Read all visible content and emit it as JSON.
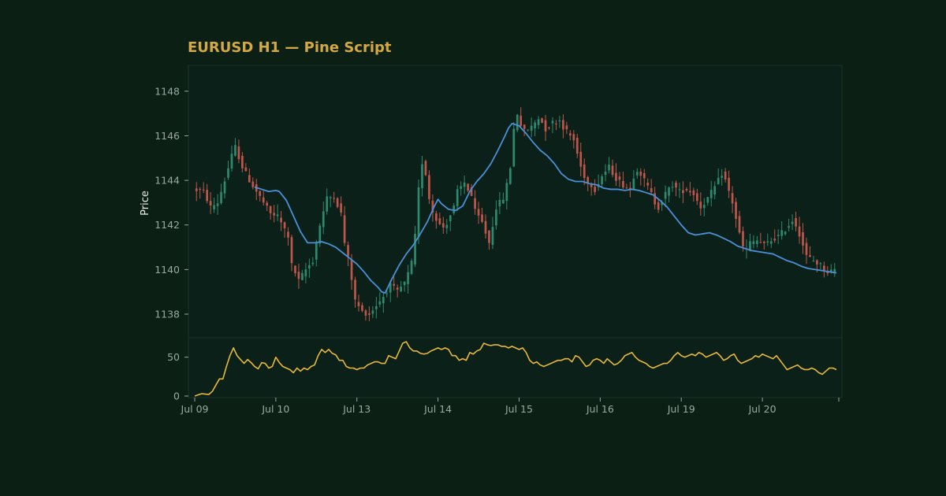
{
  "colors": {
    "background": "#0b1f15",
    "panel": "#0b2018",
    "panel_border": "#1b3529",
    "title": "#d4a843",
    "up_candle": "#2e8a6e",
    "down_candle": "#c0564b",
    "ma_line": "#4a90d9",
    "indicator_line": "#e8b83a",
    "tick_text": "#9aa8a2",
    "label_text": "#e6ece9"
  },
  "chart_data": {
    "type": "candlestick",
    "title": "EURUSD H1 — Pine Script",
    "ylabel": "Price",
    "xlabel": "",
    "grid": false,
    "legend": "none",
    "x_range": [
      0,
      182
    ],
    "ylim": [
      1137.4,
      1148.7
    ],
    "price_ticks": [
      1138,
      1140,
      1142,
      1144,
      1146,
      1148
    ],
    "x_ticks": [
      {
        "label": "Jul 09",
        "x": 0
      },
      {
        "label": "Jul 10",
        "x": 23
      },
      {
        "label": "Jul 13",
        "x": 46
      },
      {
        "label": "Jul 14",
        "x": 69
      },
      {
        "label": "Jul 15",
        "x": 92
      },
      {
        "label": "Jul 16",
        "x": 115
      },
      {
        "label": "Jul 19",
        "x": 138
      },
      {
        "label": "Jul 20",
        "x": 161
      }
    ],
    "price_path": [
      [
        0,
        1143.6
      ],
      [
        3,
        1143.5
      ],
      [
        5,
        1142.8
      ],
      [
        7,
        1143.0
      ],
      [
        9,
        1144.0
      ],
      [
        11,
        1145.1
      ],
      [
        12,
        1145.5
      ],
      [
        14,
        1144.6
      ],
      [
        16,
        1144.0
      ],
      [
        18,
        1143.5
      ],
      [
        20,
        1143.0
      ],
      [
        22,
        1142.5
      ],
      [
        24,
        1142.4
      ],
      [
        26,
        1141.8
      ],
      [
        27,
        1141.5
      ],
      [
        28,
        1140.2
      ],
      [
        30,
        1139.5
      ],
      [
        32,
        1140.0
      ],
      [
        34,
        1140.4
      ],
      [
        36,
        1142.0
      ],
      [
        38,
        1143.2
      ],
      [
        40,
        1143.3
      ],
      [
        42,
        1142.5
      ],
      [
        43,
        1141.2
      ],
      [
        44,
        1140.5
      ],
      [
        45,
        1139.6
      ],
      [
        46,
        1138.6
      ],
      [
        48,
        1138.1
      ],
      [
        50,
        1138.0
      ],
      [
        52,
        1138.4
      ],
      [
        54,
        1138.8
      ],
      [
        56,
        1139.3
      ],
      [
        58,
        1139.0
      ],
      [
        60,
        1139.4
      ],
      [
        61,
        1139.8
      ],
      [
        62,
        1140.3
      ],
      [
        63,
        1141.5
      ],
      [
        64,
        1143.6
      ],
      [
        65,
        1144.8
      ],
      [
        66,
        1144.3
      ],
      [
        67,
        1143.2
      ],
      [
        68,
        1142.6
      ],
      [
        69,
        1142.3
      ],
      [
        70,
        1142.0
      ],
      [
        71,
        1141.9
      ],
      [
        72,
        1142.1
      ],
      [
        74,
        1142.8
      ],
      [
        75,
        1143.5
      ],
      [
        77,
        1143.9
      ],
      [
        78,
        1143.6
      ],
      [
        79,
        1143.3
      ],
      [
        80,
        1142.6
      ],
      [
        82,
        1142.1
      ],
      [
        84,
        1141.2
      ],
      [
        85,
        1142.0
      ],
      [
        86,
        1142.8
      ],
      [
        88,
        1143.2
      ],
      [
        89,
        1143.8
      ],
      [
        90,
        1144.6
      ],
      [
        91,
        1146.3
      ],
      [
        92,
        1147.0
      ],
      [
        93,
        1146.5
      ],
      [
        94,
        1146.2
      ],
      [
        96,
        1146.4
      ],
      [
        98,
        1146.8
      ],
      [
        99,
        1146.6
      ],
      [
        100,
        1146.3
      ],
      [
        102,
        1146.6
      ],
      [
        104,
        1146.7
      ],
      [
        105,
        1146.4
      ],
      [
        106,
        1146.2
      ],
      [
        108,
        1145.8
      ],
      [
        109,
        1145.2
      ],
      [
        110,
        1144.6
      ],
      [
        111,
        1144.2
      ],
      [
        112,
        1143.9
      ],
      [
        113,
        1143.8
      ],
      [
        114,
        1143.6
      ],
      [
        116,
        1144.2
      ],
      [
        118,
        1144.6
      ],
      [
        120,
        1144.1
      ],
      [
        122,
        1143.8
      ],
      [
        124,
        1143.6
      ],
      [
        125,
        1144.2
      ],
      [
        126,
        1144.5
      ],
      [
        127,
        1144.3
      ],
      [
        128,
        1144.0
      ],
      [
        130,
        1143.4
      ],
      [
        131,
        1143.0
      ],
      [
        132,
        1142.8
      ],
      [
        134,
        1143.4
      ],
      [
        136,
        1143.8
      ],
      [
        138,
        1143.5
      ],
      [
        140,
        1143.6
      ],
      [
        142,
        1143.4
      ],
      [
        144,
        1142.8
      ],
      [
        146,
        1143.2
      ],
      [
        148,
        1143.7
      ],
      [
        149,
        1144.0
      ],
      [
        150,
        1144.3
      ],
      [
        151,
        1144.0
      ],
      [
        152,
        1143.5
      ],
      [
        153,
        1143.0
      ],
      [
        154,
        1142.3
      ],
      [
        155,
        1141.6
      ],
      [
        156,
        1141.0
      ],
      [
        157,
        1140.9
      ],
      [
        158,
        1141.2
      ],
      [
        160,
        1141.3
      ],
      [
        162,
        1141.1
      ],
      [
        164,
        1141.3
      ],
      [
        166,
        1141.5
      ],
      [
        168,
        1141.8
      ],
      [
        170,
        1142.2
      ],
      [
        171,
        1142.0
      ],
      [
        172,
        1141.6
      ],
      [
        173,
        1141.1
      ],
      [
        174,
        1140.6
      ],
      [
        176,
        1140.4
      ],
      [
        178,
        1140.2
      ],
      [
        180,
        1139.9
      ],
      [
        182,
        1140.0
      ]
    ],
    "ma_path": [
      [
        17,
        1143.7
      ],
      [
        19,
        1143.6
      ],
      [
        21,
        1143.5
      ],
      [
        23,
        1143.55
      ],
      [
        24,
        1143.5
      ],
      [
        26,
        1143.1
      ],
      [
        28,
        1142.4
      ],
      [
        30,
        1141.7
      ],
      [
        32,
        1141.2
      ],
      [
        34,
        1141.2
      ],
      [
        36,
        1141.25
      ],
      [
        38,
        1141.15
      ],
      [
        40,
        1141.0
      ],
      [
        42,
        1140.75
      ],
      [
        44,
        1140.5
      ],
      [
        46,
        1140.25
      ],
      [
        48,
        1139.9
      ],
      [
        50,
        1139.5
      ],
      [
        52,
        1139.2
      ],
      [
        53,
        1139.0
      ],
      [
        54,
        1138.95
      ],
      [
        56,
        1139.6
      ],
      [
        58,
        1140.2
      ],
      [
        60,
        1140.7
      ],
      [
        62,
        1141.1
      ],
      [
        64,
        1141.6
      ],
      [
        66,
        1142.15
      ],
      [
        67,
        1142.5
      ],
      [
        68,
        1142.85
      ],
      [
        69,
        1143.15
      ],
      [
        70,
        1142.95
      ],
      [
        72,
        1142.7
      ],
      [
        74,
        1142.65
      ],
      [
        76,
        1142.85
      ],
      [
        78,
        1143.5
      ],
      [
        80,
        1143.95
      ],
      [
        82,
        1144.3
      ],
      [
        84,
        1144.75
      ],
      [
        86,
        1145.35
      ],
      [
        88,
        1146.0
      ],
      [
        89,
        1146.35
      ],
      [
        90,
        1146.55
      ],
      [
        92,
        1146.45
      ],
      [
        94,
        1146.1
      ],
      [
        96,
        1145.7
      ],
      [
        98,
        1145.35
      ],
      [
        100,
        1145.1
      ],
      [
        102,
        1144.75
      ],
      [
        104,
        1144.3
      ],
      [
        106,
        1144.05
      ],
      [
        108,
        1143.95
      ],
      [
        110,
        1143.95
      ],
      [
        112,
        1143.85
      ],
      [
        114,
        1143.8
      ],
      [
        116,
        1143.65
      ],
      [
        118,
        1143.6
      ],
      [
        120,
        1143.6
      ],
      [
        122,
        1143.55
      ],
      [
        124,
        1143.6
      ],
      [
        126,
        1143.55
      ],
      [
        128,
        1143.45
      ],
      [
        130,
        1143.35
      ],
      [
        132,
        1143.1
      ],
      [
        134,
        1142.8
      ],
      [
        136,
        1142.4
      ],
      [
        138,
        1142.0
      ],
      [
        140,
        1141.65
      ],
      [
        142,
        1141.55
      ],
      [
        144,
        1141.6
      ],
      [
        146,
        1141.65
      ],
      [
        148,
        1141.55
      ],
      [
        150,
        1141.4
      ],
      [
        152,
        1141.25
      ],
      [
        154,
        1141.05
      ],
      [
        156,
        1140.95
      ],
      [
        158,
        1140.85
      ],
      [
        160,
        1140.8
      ],
      [
        162,
        1140.75
      ],
      [
        164,
        1140.7
      ],
      [
        166,
        1140.55
      ],
      [
        168,
        1140.4
      ],
      [
        170,
        1140.3
      ],
      [
        172,
        1140.15
      ],
      [
        174,
        1140.05
      ],
      [
        176,
        1140.0
      ],
      [
        178,
        1139.95
      ],
      [
        180,
        1139.9
      ],
      [
        182,
        1139.85
      ]
    ],
    "indicator": {
      "ylim": [
        0,
        72
      ],
      "ticks": [
        0,
        50
      ],
      "path": [
        [
          0,
          0
        ],
        [
          2,
          3
        ],
        [
          4,
          2
        ],
        [
          5,
          6
        ],
        [
          6,
          14
        ],
        [
          7,
          22
        ],
        [
          8,
          22
        ],
        [
          9,
          38
        ],
        [
          10,
          52
        ],
        [
          11,
          62
        ],
        [
          12,
          52
        ],
        [
          13,
          47
        ],
        [
          14,
          42
        ],
        [
          15,
          47
        ],
        [
          16,
          43
        ],
        [
          17,
          38
        ],
        [
          18,
          35
        ],
        [
          19,
          43
        ],
        [
          20,
          42
        ],
        [
          21,
          36
        ],
        [
          22,
          38
        ],
        [
          23,
          50
        ],
        [
          24,
          43
        ],
        [
          25,
          38
        ],
        [
          26,
          36
        ],
        [
          27,
          34
        ],
        [
          28,
          30
        ],
        [
          29,
          36
        ],
        [
          30,
          32
        ],
        [
          31,
          36
        ],
        [
          32,
          34
        ],
        [
          33,
          38
        ],
        [
          34,
          40
        ],
        [
          35,
          52
        ],
        [
          36,
          60
        ],
        [
          37,
          56
        ],
        [
          38,
          60
        ],
        [
          39,
          55
        ],
        [
          40,
          53
        ],
        [
          41,
          46
        ],
        [
          42,
          46
        ],
        [
          43,
          38
        ],
        [
          44,
          36
        ],
        [
          45,
          36
        ],
        [
          46,
          34
        ],
        [
          47,
          36
        ],
        [
          48,
          36
        ],
        [
          49,
          40
        ],
        [
          50,
          42
        ],
        [
          51,
          44
        ],
        [
          52,
          44
        ],
        [
          53,
          42
        ],
        [
          54,
          42
        ],
        [
          55,
          52
        ],
        [
          56,
          50
        ],
        [
          57,
          48
        ],
        [
          58,
          58
        ],
        [
          59,
          68
        ],
        [
          60,
          70
        ],
        [
          61,
          62
        ],
        [
          62,
          58
        ],
        [
          63,
          58
        ],
        [
          64,
          55
        ],
        [
          65,
          54
        ],
        [
          66,
          55
        ],
        [
          67,
          58
        ],
        [
          68,
          60
        ],
        [
          69,
          62
        ],
        [
          70,
          60
        ],
        [
          71,
          62
        ],
        [
          72,
          60
        ],
        [
          73,
          52
        ],
        [
          74,
          52
        ],
        [
          75,
          46
        ],
        [
          76,
          48
        ],
        [
          77,
          46
        ],
        [
          78,
          56
        ],
        [
          79,
          54
        ],
        [
          80,
          58
        ],
        [
          81,
          60
        ],
        [
          82,
          68
        ],
        [
          83,
          66
        ],
        [
          84,
          65
        ],
        [
          85,
          66
        ],
        [
          86,
          66
        ],
        [
          87,
          64
        ],
        [
          88,
          64
        ],
        [
          89,
          62
        ],
        [
          90,
          64
        ],
        [
          91,
          62
        ],
        [
          92,
          60
        ],
        [
          93,
          62
        ],
        [
          94,
          56
        ],
        [
          95,
          46
        ],
        [
          96,
          42
        ],
        [
          97,
          44
        ],
        [
          98,
          40
        ],
        [
          99,
          38
        ],
        [
          100,
          40
        ],
        [
          101,
          42
        ],
        [
          102,
          44
        ],
        [
          103,
          46
        ],
        [
          104,
          46
        ],
        [
          105,
          48
        ],
        [
          106,
          48
        ],
        [
          107,
          44
        ],
        [
          108,
          52
        ],
        [
          109,
          50
        ],
        [
          110,
          44
        ],
        [
          111,
          38
        ],
        [
          112,
          40
        ],
        [
          113,
          46
        ],
        [
          114,
          48
        ],
        [
          115,
          46
        ],
        [
          116,
          42
        ],
        [
          117,
          48
        ],
        [
          118,
          44
        ],
        [
          119,
          40
        ],
        [
          120,
          42
        ],
        [
          121,
          46
        ],
        [
          122,
          52
        ],
        [
          123,
          54
        ],
        [
          124,
          56
        ],
        [
          125,
          50
        ],
        [
          126,
          46
        ],
        [
          127,
          44
        ],
        [
          128,
          42
        ],
        [
          129,
          38
        ],
        [
          130,
          36
        ],
        [
          131,
          38
        ],
        [
          132,
          40
        ],
        [
          133,
          42
        ],
        [
          134,
          42
        ],
        [
          135,
          46
        ],
        [
          136,
          52
        ],
        [
          137,
          56
        ],
        [
          138,
          52
        ],
        [
          139,
          50
        ],
        [
          140,
          52
        ],
        [
          141,
          54
        ],
        [
          142,
          52
        ],
        [
          143,
          56
        ],
        [
          144,
          54
        ],
        [
          145,
          50
        ],
        [
          146,
          52
        ],
        [
          147,
          54
        ],
        [
          148,
          56
        ],
        [
          149,
          52
        ],
        [
          150,
          46
        ],
        [
          151,
          48
        ],
        [
          152,
          52
        ],
        [
          153,
          54
        ],
        [
          154,
          46
        ],
        [
          155,
          42
        ],
        [
          156,
          44
        ],
        [
          157,
          46
        ],
        [
          158,
          48
        ],
        [
          159,
          52
        ],
        [
          160,
          50
        ],
        [
          161,
          54
        ],
        [
          162,
          52
        ],
        [
          163,
          50
        ],
        [
          164,
          48
        ],
        [
          165,
          52
        ],
        [
          166,
          46
        ],
        [
          167,
          40
        ],
        [
          168,
          34
        ],
        [
          169,
          36
        ],
        [
          170,
          38
        ],
        [
          171,
          40
        ],
        [
          172,
          36
        ],
        [
          173,
          34
        ],
        [
          174,
          34
        ],
        [
          175,
          36
        ],
        [
          176,
          34
        ],
        [
          177,
          30
        ],
        [
          178,
          28
        ],
        [
          179,
          32
        ],
        [
          180,
          36
        ],
        [
          181,
          36
        ],
        [
          182,
          34
        ]
      ]
    }
  }
}
